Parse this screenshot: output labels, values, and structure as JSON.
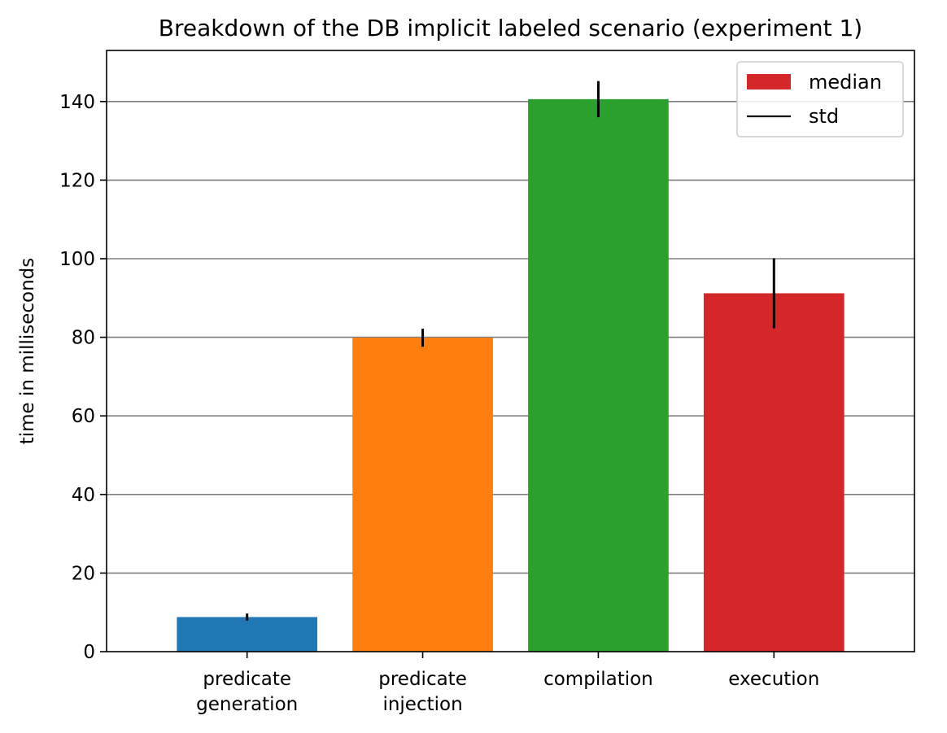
{
  "chart_data": {
    "type": "bar",
    "title": "Breakdown of the DB implicit labeled scenario (experiment 1)",
    "xlabel": "",
    "ylabel": "time in milliseconds",
    "ylim": [
      0,
      153
    ],
    "yticks": [
      0,
      20,
      40,
      60,
      80,
      100,
      120,
      140
    ],
    "grid": "y",
    "categories": [
      [
        "predicate",
        "generation"
      ],
      [
        "predicate",
        "injection"
      ],
      [
        "compilation"
      ],
      [
        "execution"
      ]
    ],
    "values": [
      8.8,
      79.9,
      140.6,
      91.2
    ],
    "std": [
      0.9,
      2.3,
      4.6,
      8.9
    ],
    "colors": [
      "#1f77b4",
      "#ff7f0e",
      "#2ca02c",
      "#d62728"
    ],
    "legend": {
      "placement": "top-right",
      "entries": [
        {
          "label": "median",
          "kind": "patch",
          "color": "#d62728"
        },
        {
          "label": "std",
          "kind": "line",
          "color": "#000000"
        }
      ]
    }
  }
}
